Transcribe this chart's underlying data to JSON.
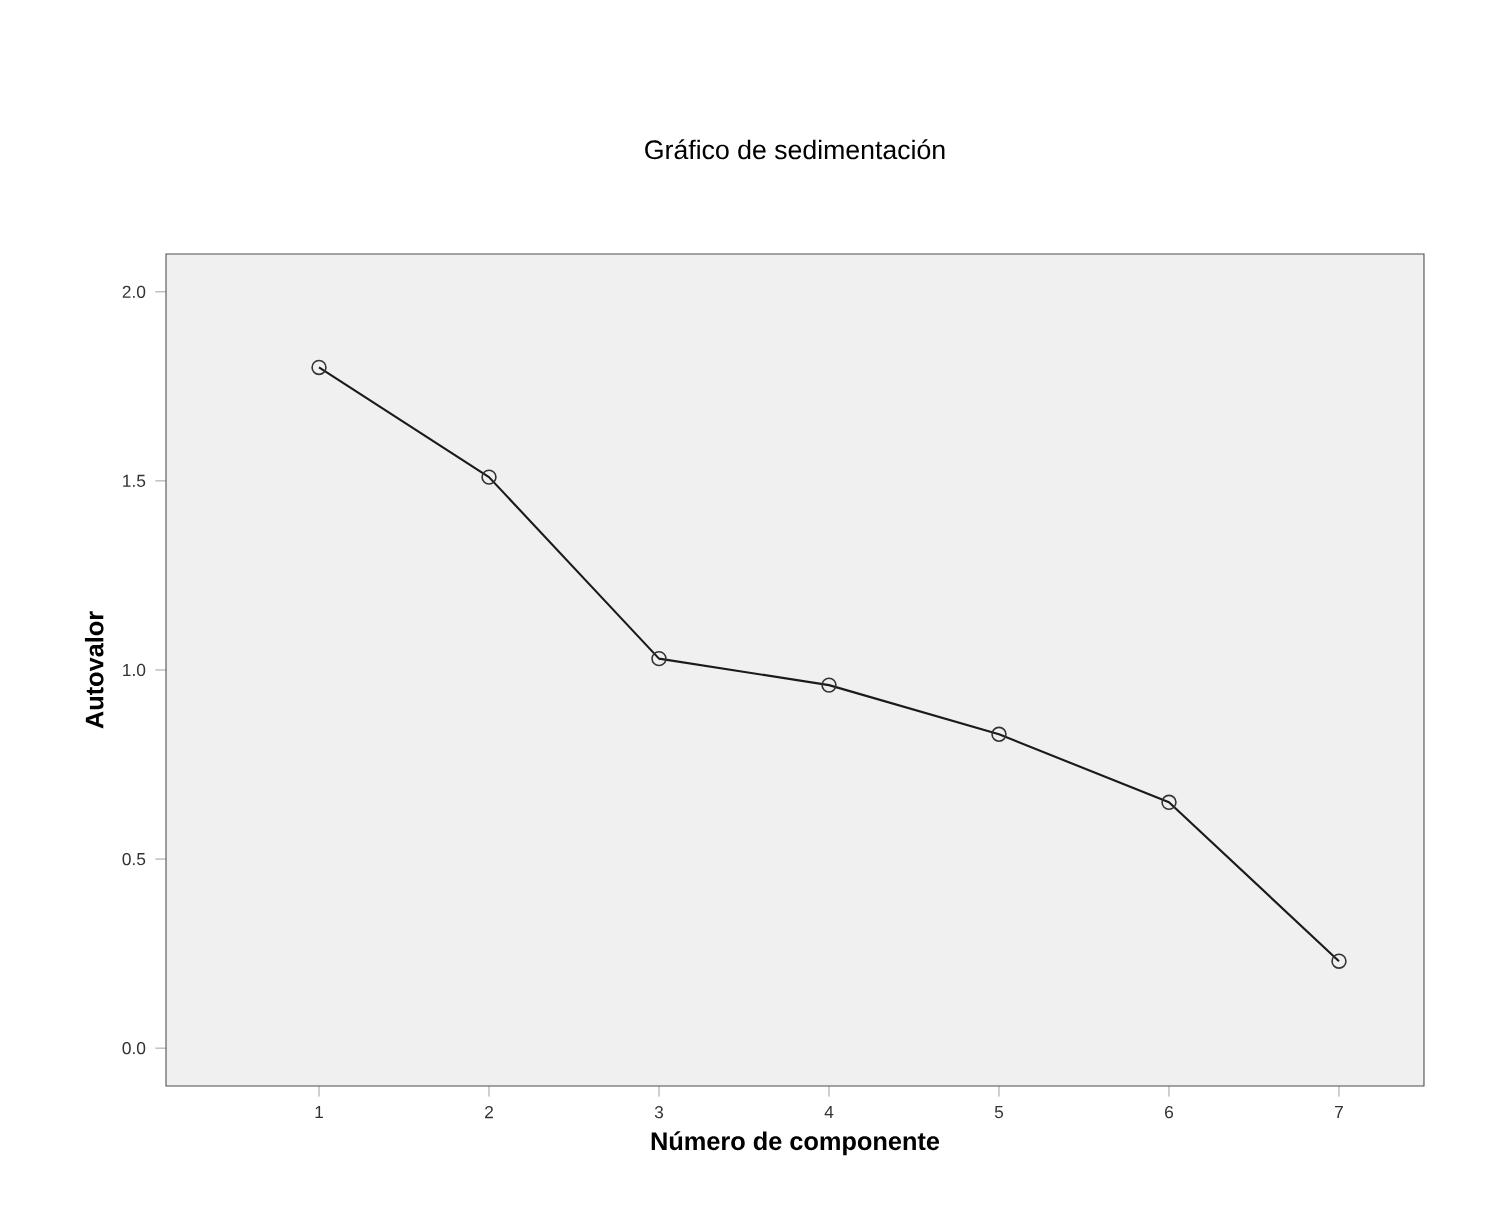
{
  "chart_data": {
    "type": "line",
    "title": "Gráfico de sedimentación",
    "xlabel": "Número de componente",
    "ylabel": "Autovalor",
    "x": [
      1,
      2,
      3,
      4,
      5,
      6,
      7
    ],
    "values": [
      1.8,
      1.51,
      1.03,
      0.96,
      0.83,
      0.65,
      0.23
    ],
    "color": "#1a1a1a",
    "marker": "circle",
    "line_style": "solid",
    "xlim": [
      0.1,
      7.5
    ],
    "ylim": [
      -0.1,
      2.1
    ],
    "xticks": [
      1,
      2,
      3,
      4,
      5,
      6,
      7
    ],
    "yticks": [
      {
        "value": 0,
        "label": "0.0"
      },
      {
        "value": 0.5,
        "label": "0.5"
      },
      {
        "value": 1,
        "label": "1.0"
      },
      {
        "value": 1.5,
        "label": "1.5"
      },
      {
        "value": 2,
        "label": "2.0"
      }
    ]
  }
}
